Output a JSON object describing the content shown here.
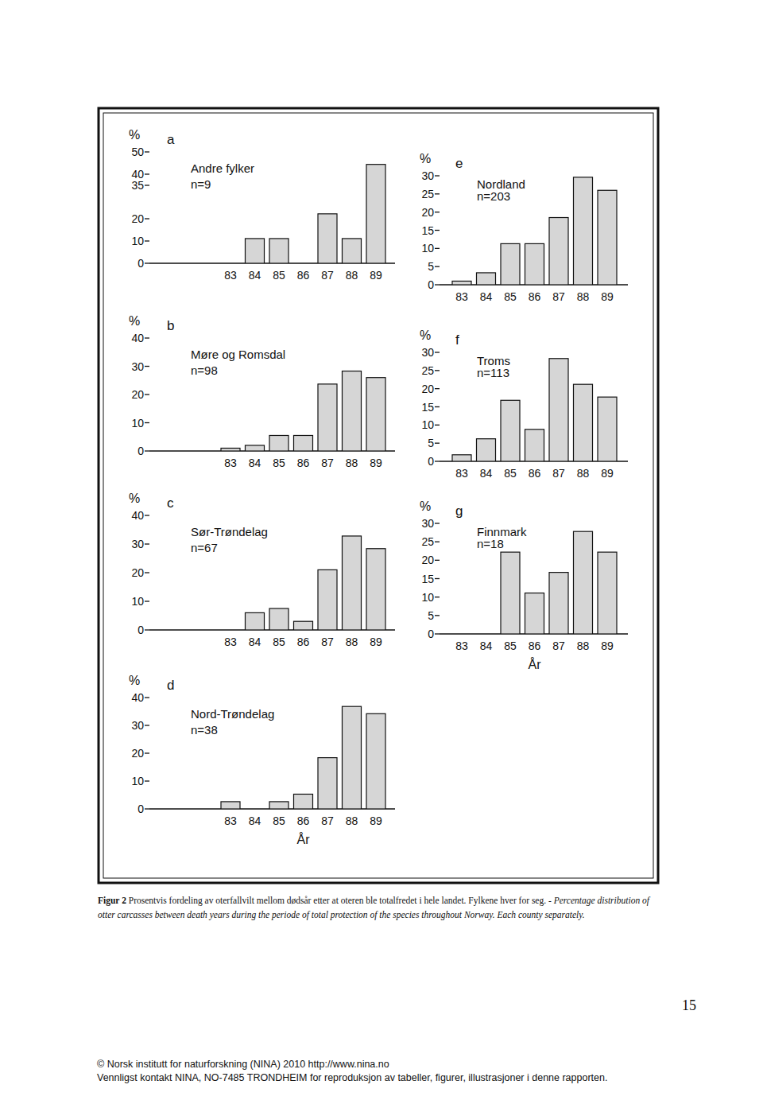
{
  "chart_data": [
    {
      "type": "bar",
      "panel": "a",
      "title": "Andre fylker",
      "subtitle": "n=9",
      "y_label": "%",
      "categories": [
        "83",
        "84",
        "85",
        "86",
        "87",
        "88",
        "89"
      ],
      "values": [
        0,
        11.1,
        11.1,
        0,
        22.2,
        11.1,
        44.4
      ],
      "color": "#d6d6d6",
      "ylim": [
        0,
        50
      ],
      "yticks": [
        0,
        10,
        20,
        35,
        40,
        50
      ]
    },
    {
      "type": "bar",
      "panel": "b",
      "title": "Møre og Romsdal",
      "subtitle": "n=98",
      "y_label": "%",
      "categories": [
        "83",
        "84",
        "85",
        "86",
        "87",
        "88",
        "89"
      ],
      "values": [
        1,
        2,
        5.5,
        5.5,
        23.7,
        28.3,
        26
      ],
      "color": "#d6d6d6",
      "ylim": [
        0,
        40
      ],
      "yticks": [
        0,
        10,
        20,
        30,
        40
      ]
    },
    {
      "type": "bar",
      "panel": "c",
      "title": "Sør-Trøndelag",
      "subtitle": "n=67",
      "y_label": "%",
      "categories": [
        "83",
        "84",
        "85",
        "86",
        "87",
        "88",
        "89"
      ],
      "values": [
        0,
        6,
        7.5,
        3,
        21,
        32.8,
        28.4
      ],
      "color": "#d6d6d6",
      "ylim": [
        0,
        40
      ],
      "yticks": [
        0,
        10,
        20,
        30,
        40
      ]
    },
    {
      "type": "bar",
      "panel": "d",
      "title": "Nord-Trøndelag",
      "subtitle": "n=38",
      "y_label": "%",
      "x_label": "År",
      "categories": [
        "83",
        "84",
        "85",
        "86",
        "87",
        "88",
        "89"
      ],
      "values": [
        2.6,
        0,
        2.6,
        5.3,
        18.4,
        36.8,
        34.2
      ],
      "color": "#d6d6d6",
      "ylim": [
        0,
        40
      ],
      "yticks": [
        0,
        10,
        20,
        30,
        40
      ]
    },
    {
      "type": "bar",
      "panel": "e",
      "title": "Nordland",
      "subtitle": "n=203",
      "y_label": "%",
      "categories": [
        "83",
        "84",
        "85",
        "86",
        "87",
        "88",
        "89"
      ],
      "values": [
        1,
        3.3,
        11.3,
        11.3,
        18.5,
        29.6,
        26
      ],
      "color": "#d6d6d6",
      "ylim": [
        0,
        30
      ],
      "yticks": [
        0,
        5,
        10,
        15,
        20,
        25,
        30
      ]
    },
    {
      "type": "bar",
      "panel": "f",
      "title": "Troms",
      "subtitle": "n=113",
      "y_label": "%",
      "categories": [
        "83",
        "84",
        "85",
        "86",
        "87",
        "88",
        "89"
      ],
      "values": [
        1.8,
        6.2,
        16.8,
        8.8,
        28.3,
        21.2,
        17.7
      ],
      "color": "#d6d6d6",
      "ylim": [
        0,
        30
      ],
      "yticks": [
        0,
        5,
        10,
        15,
        20,
        25,
        30
      ]
    },
    {
      "type": "bar",
      "panel": "g",
      "title": "Finnmark",
      "subtitle": "n=18",
      "y_label": "%",
      "x_label": "År",
      "categories": [
        "83",
        "84",
        "85",
        "86",
        "87",
        "88",
        "89"
      ],
      "values": [
        0,
        0,
        22.2,
        11.1,
        16.7,
        27.8,
        22.2
      ],
      "color": "#d6d6d6",
      "ylim": [
        0,
        30
      ],
      "yticks": [
        0,
        5,
        10,
        15,
        20,
        25,
        30
      ]
    }
  ],
  "caption": {
    "label": "Figur 2",
    "norwegian": "Prosentvis fordeling av oterfallvilt mellom dødsår etter at oteren ble totalfredet i hele landet. Fylkene hver for seg. -",
    "english": "Percentage distribution of otter carcasses between death years during the periode of total protection of the species throughout Norway. Each county separately."
  },
  "page_number": "15",
  "footer": [
    "© Norsk institutt for naturforskning (NINA) 2010 http://www.nina.no",
    "Vennligst kontakt NINA, NO-7485 TRONDHEIM for reproduksjon av tabeller, figurer, illustrasjoner i denne rapporten."
  ]
}
